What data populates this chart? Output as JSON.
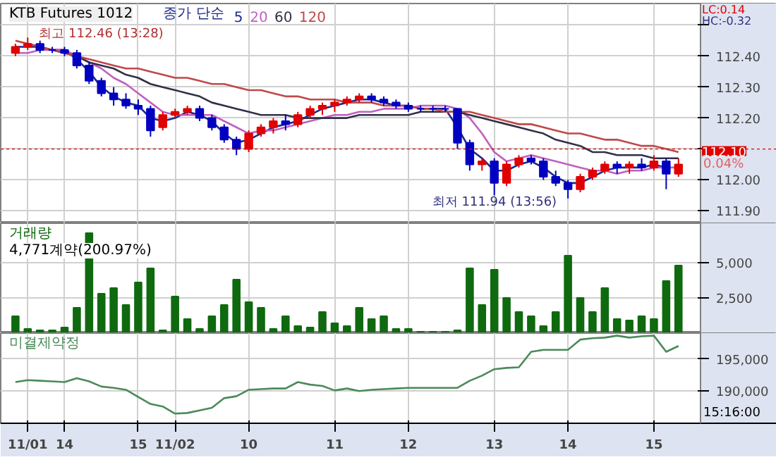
{
  "chart_data": [
    {
      "type": "candlestick",
      "title": "KTB Futures 1012",
      "legend_title": "종가 단순",
      "legend": "top",
      "grid": true,
      "tick_labels": "y",
      "ohlc": [
        [
          112.41,
          112.44,
          112.4,
          112.43
        ],
        [
          112.43,
          112.46,
          112.42,
          112.44
        ],
        [
          112.44,
          112.45,
          112.41,
          112.42
        ],
        [
          112.42,
          112.43,
          112.41,
          112.42
        ],
        [
          112.42,
          112.43,
          112.4,
          112.41
        ],
        [
          112.41,
          112.42,
          112.36,
          112.37
        ],
        [
          112.37,
          112.38,
          112.31,
          112.32
        ],
        [
          112.32,
          112.33,
          112.27,
          112.28
        ],
        [
          112.28,
          112.3,
          112.24,
          112.26
        ],
        [
          112.26,
          112.28,
          112.23,
          112.24
        ],
        [
          112.24,
          112.26,
          112.21,
          112.23
        ],
        [
          112.23,
          112.24,
          112.14,
          112.16
        ],
        [
          112.17,
          112.22,
          112.16,
          112.21
        ],
        [
          112.21,
          112.23,
          112.2,
          112.22
        ],
        [
          112.22,
          112.24,
          112.21,
          112.23
        ],
        [
          112.23,
          112.24,
          112.19,
          112.2
        ],
        [
          112.2,
          112.21,
          112.16,
          112.17
        ],
        [
          112.17,
          112.18,
          112.12,
          112.13
        ],
        [
          112.13,
          112.14,
          112.08,
          112.1
        ],
        [
          112.1,
          112.16,
          112.09,
          112.15
        ],
        [
          112.15,
          112.18,
          112.14,
          112.17
        ],
        [
          112.17,
          112.2,
          112.15,
          112.19
        ],
        [
          112.19,
          112.21,
          112.16,
          112.18
        ],
        [
          112.18,
          112.22,
          112.17,
          112.21
        ],
        [
          112.21,
          112.24,
          112.2,
          112.23
        ],
        [
          112.23,
          112.25,
          112.21,
          112.24
        ],
        [
          112.24,
          112.26,
          112.22,
          112.25
        ],
        [
          112.25,
          112.27,
          112.24,
          112.26
        ],
        [
          112.26,
          112.28,
          112.25,
          112.27
        ],
        [
          112.27,
          112.28,
          112.25,
          112.26
        ],
        [
          112.26,
          112.27,
          112.24,
          112.25
        ],
        [
          112.25,
          112.26,
          112.23,
          112.24
        ],
        [
          112.24,
          112.25,
          112.22,
          112.23
        ],
        [
          112.23,
          112.24,
          112.22,
          112.23
        ],
        [
          112.23,
          112.24,
          112.22,
          112.23
        ],
        [
          112.23,
          112.24,
          112.22,
          112.23
        ],
        [
          112.23,
          112.23,
          112.1,
          112.12
        ],
        [
          112.12,
          112.13,
          112.03,
          112.05
        ],
        [
          112.05,
          112.07,
          112.03,
          112.06
        ],
        [
          112.06,
          112.07,
          111.95,
          111.99
        ],
        [
          111.99,
          112.06,
          111.98,
          112.05
        ],
        [
          112.05,
          112.08,
          112.04,
          112.07
        ],
        [
          112.07,
          112.08,
          112.05,
          112.06
        ],
        [
          112.06,
          112.07,
          112.0,
          112.01
        ],
        [
          112.01,
          112.03,
          111.98,
          111.99
        ],
        [
          111.99,
          112.0,
          111.94,
          111.97
        ],
        [
          111.97,
          112.02,
          111.96,
          112.01
        ],
        [
          112.01,
          112.04,
          112.0,
          112.03
        ],
        [
          112.03,
          112.06,
          112.02,
          112.05
        ],
        [
          112.05,
          112.06,
          112.02,
          112.04
        ],
        [
          112.04,
          112.06,
          112.02,
          112.05
        ],
        [
          112.05,
          112.07,
          112.03,
          112.04
        ],
        [
          112.04,
          112.08,
          112.03,
          112.06
        ],
        [
          112.06,
          112.07,
          111.97,
          112.02
        ],
        [
          112.02,
          112.07,
          112.01,
          112.05
        ]
      ],
      "colors": [
        "#e00000",
        "#e00000",
        "#0000c0",
        "#0000c0",
        "#0000c0",
        "#0000c0",
        "#0000c0",
        "#0000c0",
        "#0000c0",
        "#0000c0",
        "#0000c0",
        "#0000c0",
        "#e00000",
        "#e00000",
        "#e00000",
        "#0000c0",
        "#0000c0",
        "#0000c0",
        "#0000c0",
        "#e00000",
        "#e00000",
        "#e00000",
        "#0000c0",
        "#e00000",
        "#e00000",
        "#e00000",
        "#e00000",
        "#e00000",
        "#e00000",
        "#0000c0",
        "#0000c0",
        "#0000c0",
        "#0000c0",
        "#0000c0",
        "#0000c0",
        "#0000c0",
        "#0000c0",
        "#0000c0",
        "#e00000",
        "#0000c0",
        "#e00000",
        "#e00000",
        "#0000c0",
        "#0000c0",
        "#0000c0",
        "#0000c0",
        "#e00000",
        "#e00000",
        "#e00000",
        "#0000c0",
        "#e00000",
        "#0000c0",
        "#e00000",
        "#0000c0",
        "#e00000"
      ],
      "series": [
        {
          "name": "5",
          "type": "line",
          "color": "#1c2a8c",
          "values": [
            112.43,
            112.43,
            112.43,
            112.42,
            112.42,
            112.39,
            112.35,
            112.3,
            112.27,
            112.25,
            112.24,
            112.2,
            112.19,
            112.2,
            112.22,
            112.21,
            112.19,
            112.15,
            112.12,
            112.13,
            112.15,
            112.17,
            112.18,
            112.19,
            112.21,
            112.23,
            112.24,
            112.25,
            112.26,
            112.26,
            112.25,
            112.24,
            112.24,
            112.23,
            112.23,
            112.23,
            112.17,
            112.1,
            112.07,
            112.03,
            112.03,
            112.05,
            112.06,
            112.04,
            112.01,
            111.99,
            111.99,
            112.01,
            112.03,
            112.04,
            112.04,
            112.04,
            112.05,
            112.04,
            null
          ]
        },
        {
          "name": "20",
          "type": "line",
          "color": "#c060c0",
          "values": [
            112.41,
            112.41,
            112.42,
            112.42,
            112.42,
            112.4,
            112.38,
            112.36,
            112.33,
            112.31,
            112.28,
            112.25,
            112.22,
            112.21,
            112.21,
            112.21,
            112.21,
            112.19,
            112.17,
            112.15,
            112.16,
            112.16,
            112.17,
            112.18,
            112.19,
            112.2,
            112.21,
            112.21,
            112.22,
            112.22,
            112.23,
            112.23,
            112.23,
            112.24,
            112.24,
            112.24,
            112.23,
            112.2,
            112.15,
            112.09,
            112.06,
            112.07,
            112.08,
            112.07,
            112.06,
            112.05,
            112.04,
            112.03,
            112.03,
            112.02,
            112.03,
            112.03,
            112.04,
            112.04,
            112.04
          ]
        },
        {
          "name": "60",
          "type": "line",
          "color": "#303048",
          "values": [
            null,
            112.44,
            112.43,
            112.42,
            112.41,
            112.4,
            112.38,
            112.37,
            112.36,
            112.34,
            112.33,
            112.31,
            112.3,
            112.29,
            112.28,
            112.27,
            112.25,
            112.24,
            112.23,
            112.22,
            112.21,
            112.21,
            112.21,
            112.2,
            112.2,
            112.2,
            112.2,
            112.2,
            112.21,
            112.21,
            112.21,
            112.21,
            112.21,
            112.22,
            112.22,
            112.22,
            112.22,
            112.21,
            112.2,
            112.19,
            112.18,
            112.17,
            112.16,
            112.15,
            112.13,
            112.12,
            112.11,
            112.09,
            112.09,
            112.08,
            112.08,
            112.08,
            112.07,
            112.07,
            112.07
          ]
        },
        {
          "name": "120",
          "type": "line",
          "color": "#c04848",
          "values": [
            112.45,
            112.44,
            112.43,
            112.42,
            112.41,
            112.4,
            112.39,
            112.38,
            112.37,
            112.36,
            112.36,
            112.35,
            112.34,
            112.33,
            112.33,
            112.32,
            112.31,
            112.31,
            112.3,
            112.29,
            112.29,
            112.28,
            112.27,
            112.27,
            112.26,
            112.26,
            112.26,
            112.25,
            112.25,
            112.25,
            112.24,
            112.24,
            112.24,
            112.23,
            112.23,
            112.22,
            112.22,
            112.22,
            112.21,
            112.2,
            112.19,
            112.18,
            112.18,
            112.17,
            112.16,
            112.15,
            112.15,
            112.14,
            112.13,
            112.13,
            112.12,
            112.11,
            112.11,
            112.1,
            112.09
          ]
        }
      ],
      "ylim": [
        111.86,
        112.57
      ],
      "yticks": [
        {
          "value": 111.9,
          "label": "111.90"
        },
        {
          "value": 112.0,
          "label": "112.00"
        },
        {
          "value": 112.1,
          "label": null
        },
        {
          "value": 112.2,
          "label": "112.20"
        },
        {
          "value": 112.3,
          "label": "112.30"
        },
        {
          "value": 112.4,
          "label": "112.40"
        },
        {
          "value": 112.5,
          "label": null
        }
      ],
      "ref_lines": [
        {
          "axis": "y",
          "value": 112.1,
          "label": "112.10",
          "color": "#e00000"
        }
      ],
      "annotations": [
        "최고 112.46 (13:28)",
        "최저 111.94 (13:56)",
        "LC:0.14",
        "HC:-0.32",
        "0.04%"
      ]
    },
    {
      "type": "bar",
      "title": "거래량",
      "grid": true,
      "tick_labels": "y",
      "series": [
        {
          "color": "#0f6a0f",
          "values": [
            1200,
            300,
            200,
            200,
            400,
            1800,
            7100,
            2800,
            3200,
            2000,
            3600,
            4600,
            200,
            2600,
            1000,
            300,
            1200,
            2000,
            3800,
            2200,
            1800,
            300,
            1200,
            500,
            400,
            1500,
            700,
            500,
            1800,
            1000,
            1200,
            300,
            300,
            100,
            100,
            100,
            200,
            4600,
            2000,
            4500,
            2500,
            1500,
            1200,
            500,
            1500,
            5500,
            2500,
            1500,
            3200,
            1000,
            900,
            1200,
            1000,
            3700,
            4800
          ]
        }
      ],
      "ylim": [
        0,
        7800
      ],
      "yticks": [
        {
          "value": 2500,
          "label": "2,500"
        },
        {
          "value": 5000,
          "label": "5,000"
        }
      ],
      "annotations": [
        "4,771계약(200.97%)"
      ]
    },
    {
      "type": "line",
      "title": "미결제약정",
      "grid": true,
      "categories": [
        null,
        "11/01",
        null,
        null,
        "14",
        null,
        null,
        null,
        null,
        null,
        "15",
        null,
        null,
        "11/02",
        null,
        null,
        null,
        null,
        null,
        "10",
        null,
        null,
        null,
        null,
        null,
        null,
        "11",
        null,
        null,
        null,
        null,
        null,
        "12",
        null,
        null,
        null,
        null,
        null,
        null,
        "13",
        null,
        null,
        null,
        null,
        null,
        "14",
        null,
        null,
        null,
        null,
        null,
        null,
        "15",
        null,
        null
      ],
      "series": [
        {
          "color": "#4a8a5a",
          "values": [
            191400,
            191700,
            191600,
            191500,
            191400,
            192000,
            191500,
            190700,
            190500,
            190200,
            189100,
            188000,
            187600,
            186500,
            186600,
            187000,
            187400,
            188900,
            189200,
            190200,
            190300,
            190400,
            190400,
            191400,
            191000,
            190800,
            190100,
            190400,
            190000,
            190200,
            190300,
            190400,
            190500,
            190500,
            190500,
            190500,
            190500,
            191600,
            192400,
            193400,
            193600,
            193700,
            196100,
            196400,
            196400,
            196400,
            198000,
            198200,
            198300,
            198600,
            198300,
            198500,
            198600,
            196100,
            197000
          ]
        }
      ],
      "ylim": [
        185000,
        199000
      ],
      "yticks": [
        {
          "value": 190000,
          "label": "190,000"
        },
        {
          "value": 195000,
          "label": "195,000"
        }
      ],
      "annotations": [
        "15:16:00"
      ]
    }
  ]
}
